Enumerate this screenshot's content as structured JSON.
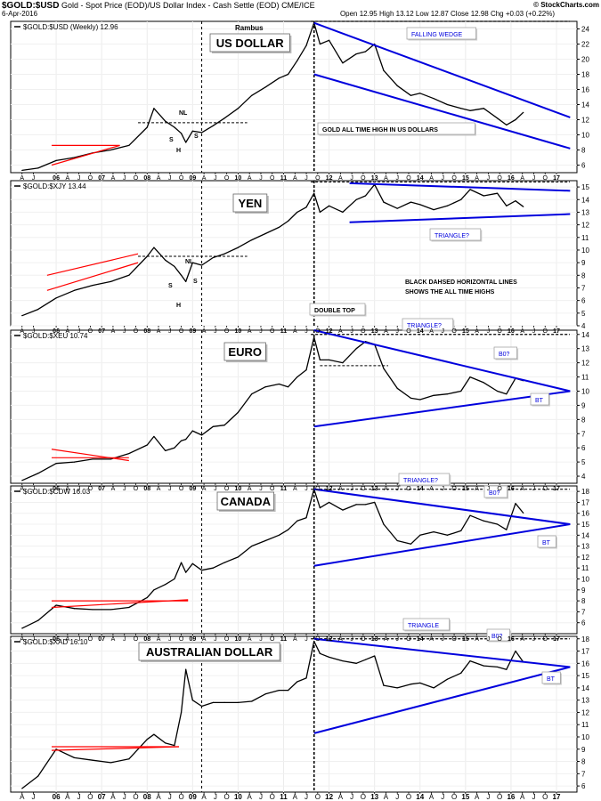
{
  "header": {
    "symbol": "$GOLD:$USD",
    "description": "Gold - Spot Price (EOD)/US Dollar Index - Cash Settle (EOD)",
    "exchange": "CME/ICE",
    "date": "6-Apr-2016",
    "ohlc": "Open 12.95   High 13.12   Low 12.87   Close 12.98   Chg +0.03 (+0.22%)",
    "brand": "© StockCharts.com"
  },
  "colors": {
    "price": "#000000",
    "trend": "#0000dd",
    "old_trend": "#ff0000",
    "dashed": "#000000"
  },
  "x_axis": {
    "labels": [
      "A",
      "J",
      "06",
      "A",
      "J",
      "O",
      "07",
      "A",
      "J",
      "O",
      "08",
      "A",
      "J",
      "O",
      "09",
      "A",
      "J",
      "O",
      "10",
      "A",
      "J",
      "O",
      "11",
      "A",
      "J",
      "O",
      "12",
      "A",
      "J",
      "O",
      "13",
      "A",
      "J",
      "O",
      "14",
      "A",
      "J",
      "O",
      "15",
      "A",
      "J",
      "O",
      "16",
      "A",
      "J",
      "O",
      "17"
    ]
  },
  "chart_data": [
    {
      "type": "line",
      "legend": "$GOLD:$USD (Weekly) 12.96",
      "label": "US DOLLAR",
      "extra_label": "Rambus",
      "ylim": [
        5,
        25
      ],
      "y_ticks": [
        6,
        8,
        10,
        12,
        14,
        16,
        18,
        20,
        22,
        24
      ],
      "all_time_high": 25,
      "neckline_level": 11.6,
      "annotations": [
        {
          "text": "FALLING WEDGE"
        },
        {
          "text": "GOLD ALL TIME HIGH IN US DOLLARS"
        },
        {
          "text": "NL"
        },
        {
          "text": "S"
        },
        {
          "text": "H"
        },
        {
          "text": "S"
        }
      ],
      "x_dates": [
        2005.25,
        2005.6,
        2006.0,
        2006.4,
        2006.8,
        2007.2,
        2007.6,
        2008.0,
        2008.15,
        2008.4,
        2008.6,
        2008.75,
        2008.85,
        2009.0,
        2009.2,
        2009.45,
        2009.7,
        2010.0,
        2010.3,
        2010.6,
        2010.9,
        2011.1,
        2011.3,
        2011.5,
        2011.67,
        2011.8,
        2012.0,
        2012.3,
        2012.6,
        2012.8,
        2013.0,
        2013.2,
        2013.5,
        2013.8,
        2014.0,
        2014.3,
        2014.6,
        2014.9,
        2015.1,
        2015.4,
        2015.7,
        2015.9,
        2016.1,
        2016.27
      ],
      "values": [
        5.3,
        5.6,
        6.6,
        7.0,
        7.6,
        8.0,
        8.6,
        11.0,
        13.5,
        11.8,
        11.0,
        10.2,
        9.0,
        10.5,
        10.3,
        11.2,
        12.2,
        13.5,
        15.2,
        16.3,
        17.5,
        18.0,
        19.8,
        21.8,
        24.8,
        22.0,
        22.5,
        19.5,
        20.7,
        21.0,
        22.0,
        18.5,
        16.5,
        15.2,
        15.5,
        14.8,
        14.0,
        13.5,
        13.2,
        13.5,
        12.2,
        11.3,
        12.0,
        12.96
      ],
      "trendlines": [
        {
          "name": "upper",
          "x": [
            2011.67,
            2017.3
          ],
          "y": [
            24.8,
            12.3
          ]
        },
        {
          "name": "lower",
          "x": [
            2011.67,
            2017.3
          ],
          "y": [
            18.0,
            8.2
          ]
        }
      ],
      "old_trendlines": [
        {
          "x": [
            2005.9,
            2007.4
          ],
          "y": [
            6.0,
            8.6
          ]
        },
        {
          "x": [
            2005.9,
            2007.4
          ],
          "y": [
            8.6,
            8.6
          ]
        }
      ]
    },
    {
      "type": "line",
      "legend": "$GOLD:$XJY 13.44",
      "label": "YEN",
      "ylim": [
        4,
        15.5
      ],
      "y_ticks": [
        4,
        5,
        6,
        7,
        8,
        9,
        10,
        11,
        12,
        13,
        14,
        15
      ],
      "all_time_high": 15.4,
      "neckline_level": 9.5,
      "annotations": [
        {
          "text": "TRIANGLE?"
        },
        {
          "text": "BLACK DAHSED HORIZONTAL LINES"
        },
        {
          "text": "SHOWS THE ALL TIME HIGHS"
        },
        {
          "text": "NL"
        },
        {
          "text": "S"
        },
        {
          "text": "H"
        },
        {
          "text": "S"
        }
      ],
      "x_dates": [
        2005.25,
        2005.6,
        2006.0,
        2006.4,
        2006.8,
        2007.2,
        2007.6,
        2008.0,
        2008.15,
        2008.4,
        2008.6,
        2008.75,
        2008.85,
        2009.0,
        2009.2,
        2009.45,
        2009.7,
        2010.0,
        2010.3,
        2010.6,
        2010.9,
        2011.1,
        2011.3,
        2011.5,
        2011.67,
        2011.8,
        2012.0,
        2012.3,
        2012.6,
        2012.8,
        2013.0,
        2013.2,
        2013.5,
        2013.8,
        2014.0,
        2014.3,
        2014.6,
        2014.9,
        2015.1,
        2015.4,
        2015.7,
        2015.9,
        2016.1,
        2016.27
      ],
      "values": [
        4.8,
        5.3,
        6.2,
        6.8,
        7.2,
        7.5,
        8.0,
        9.5,
        10.2,
        9.2,
        8.7,
        8.0,
        7.5,
        9.0,
        8.8,
        9.4,
        9.7,
        10.2,
        10.8,
        11.3,
        11.8,
        12.3,
        13.0,
        13.4,
        14.5,
        13.0,
        13.5,
        13.0,
        14.0,
        14.3,
        15.2,
        13.8,
        13.3,
        13.8,
        13.6,
        13.2,
        13.5,
        14.0,
        14.8,
        14.3,
        14.5,
        13.5,
        13.9,
        13.44
      ],
      "trendlines": [
        {
          "name": "upper",
          "x": [
            2012.45,
            2017.3
          ],
          "y": [
            15.3,
            14.7
          ]
        },
        {
          "name": "lower",
          "x": [
            2012.45,
            2017.3
          ],
          "y": [
            12.2,
            12.85
          ]
        }
      ],
      "old_trendlines": [
        {
          "x": [
            2005.8,
            2007.8
          ],
          "y": [
            6.8,
            9.0
          ]
        },
        {
          "x": [
            2005.8,
            2007.8
          ],
          "y": [
            8.0,
            9.7
          ]
        }
      ]
    },
    {
      "type": "line",
      "legend": "$GOLD:$XEU 10.74",
      "label": "EURO",
      "ylim": [
        3.5,
        14.3
      ],
      "y_ticks": [
        4,
        5,
        6,
        7,
        8,
        9,
        10,
        11,
        12,
        13,
        14
      ],
      "all_time_high": 14.0,
      "neckline_level": 11.8,
      "annotations": [
        {
          "text": "DOUBLE TOP"
        },
        {
          "text": "TRIANGLE?"
        },
        {
          "text": "B0?"
        },
        {
          "text": "BT"
        }
      ],
      "x_dates": [
        2005.25,
        2005.6,
        2006.0,
        2006.4,
        2006.8,
        2007.2,
        2007.6,
        2008.0,
        2008.15,
        2008.4,
        2008.6,
        2008.75,
        2008.85,
        2009.0,
        2009.2,
        2009.45,
        2009.7,
        2010.0,
        2010.3,
        2010.6,
        2010.9,
        2011.1,
        2011.3,
        2011.5,
        2011.67,
        2011.8,
        2012.0,
        2012.3,
        2012.6,
        2012.8,
        2013.0,
        2013.2,
        2013.5,
        2013.8,
        2014.0,
        2014.3,
        2014.6,
        2014.9,
        2015.1,
        2015.4,
        2015.7,
        2015.9,
        2016.1,
        2016.27
      ],
      "values": [
        3.7,
        4.2,
        4.9,
        5.0,
        5.2,
        5.2,
        5.6,
        6.2,
        6.8,
        5.8,
        6.0,
        6.5,
        6.6,
        7.2,
        6.9,
        7.5,
        7.6,
        8.5,
        9.8,
        10.3,
        10.5,
        10.3,
        11.0,
        11.5,
        13.8,
        12.2,
        12.2,
        12.0,
        13.0,
        13.5,
        13.3,
        11.6,
        10.2,
        9.5,
        9.4,
        9.7,
        9.8,
        10.0,
        11.0,
        10.6,
        10.0,
        9.8,
        10.9,
        10.74
      ],
      "trendlines": [
        {
          "name": "upper",
          "x": [
            2011.67,
            2017.3
          ],
          "y": [
            14.3,
            10.0
          ]
        },
        {
          "name": "lower",
          "x": [
            2011.67,
            2017.3
          ],
          "y": [
            7.5,
            10.0
          ]
        }
      ],
      "old_trendlines": [
        {
          "x": [
            2005.9,
            2007.6
          ],
          "y": [
            5.3,
            5.3
          ]
        },
        {
          "x": [
            2005.9,
            2007.6
          ],
          "y": [
            5.9,
            5.1
          ]
        }
      ]
    },
    {
      "type": "line",
      "legend": "$GOLD:$CDW 16.03",
      "label": "CANADA",
      "ylim": [
        5,
        18.5
      ],
      "y_ticks": [
        6,
        7,
        8,
        9,
        10,
        11,
        12,
        13,
        14,
        15,
        16,
        17,
        18
      ],
      "all_time_high": 18.2,
      "annotations": [
        {
          "text": "TRIANGLE?"
        },
        {
          "text": "B0?"
        },
        {
          "text": "BT"
        }
      ],
      "x_dates": [
        2005.25,
        2005.6,
        2006.0,
        2006.4,
        2006.8,
        2007.2,
        2007.6,
        2008.0,
        2008.15,
        2008.4,
        2008.6,
        2008.75,
        2008.85,
        2009.0,
        2009.2,
        2009.45,
        2009.7,
        2010.0,
        2010.3,
        2010.6,
        2010.9,
        2011.1,
        2011.3,
        2011.5,
        2011.67,
        2011.8,
        2012.0,
        2012.3,
        2012.6,
        2012.8,
        2013.0,
        2013.2,
        2013.5,
        2013.8,
        2014.0,
        2014.3,
        2014.6,
        2014.9,
        2015.1,
        2015.4,
        2015.7,
        2015.9,
        2016.1,
        2016.27
      ],
      "values": [
        5.5,
        6.2,
        7.6,
        7.3,
        7.2,
        7.2,
        7.4,
        8.3,
        9.0,
        9.5,
        10.0,
        11.5,
        10.6,
        11.4,
        10.8,
        11.0,
        11.5,
        12.0,
        13.0,
        13.5,
        14.0,
        14.5,
        15.3,
        15.6,
        18.2,
        16.5,
        17.0,
        16.3,
        16.8,
        16.8,
        17.0,
        15.0,
        13.5,
        13.2,
        14.0,
        14.3,
        14.0,
        14.4,
        15.8,
        15.3,
        15.0,
        14.5,
        16.9,
        16.03
      ],
      "trendlines": [
        {
          "name": "upper",
          "x": [
            2011.67,
            2017.3
          ],
          "y": [
            18.2,
            15.0
          ]
        },
        {
          "name": "lower",
          "x": [
            2011.67,
            2017.3
          ],
          "y": [
            11.2,
            15.0
          ]
        }
      ],
      "old_trendlines": [
        {
          "x": [
            2005.9,
            2008.9
          ],
          "y": [
            7.4,
            8.1
          ]
        },
        {
          "x": [
            2005.9,
            2008.9
          ],
          "y": [
            8.0,
            8.0
          ]
        }
      ]
    },
    {
      "type": "line",
      "legend": "$GOLD:$XAD 16.10",
      "label": "AUSTRALIAN DOLLAR",
      "ylim": [
        5.5,
        18.2
      ],
      "y_ticks": [
        6,
        7,
        8,
        9,
        10,
        11,
        12,
        13,
        14,
        15,
        16,
        17,
        18
      ],
      "all_time_high": 18.0,
      "annotations": [
        {
          "text": "TRIANGLE"
        },
        {
          "text": "B0?"
        },
        {
          "text": "BT"
        }
      ],
      "x_dates": [
        2005.25,
        2005.6,
        2006.0,
        2006.4,
        2006.8,
        2007.2,
        2007.6,
        2008.0,
        2008.15,
        2008.4,
        2008.6,
        2008.75,
        2008.85,
        2009.0,
        2009.2,
        2009.45,
        2009.7,
        2010.0,
        2010.3,
        2010.6,
        2010.9,
        2011.1,
        2011.3,
        2011.5,
        2011.67,
        2011.8,
        2012.0,
        2012.3,
        2012.6,
        2012.8,
        2013.0,
        2013.2,
        2013.5,
        2013.8,
        2014.0,
        2014.3,
        2014.6,
        2014.9,
        2015.1,
        2015.4,
        2015.7,
        2015.9,
        2016.1,
        2016.27
      ],
      "values": [
        5.8,
        6.8,
        9.0,
        8.3,
        8.1,
        7.9,
        8.2,
        9.8,
        10.2,
        9.5,
        9.3,
        12.0,
        15.5,
        13.0,
        12.5,
        12.8,
        12.8,
        12.8,
        12.9,
        13.5,
        13.8,
        13.8,
        14.5,
        14.8,
        17.8,
        16.8,
        16.5,
        16.2,
        16.0,
        16.3,
        16.6,
        14.2,
        14.0,
        14.3,
        14.4,
        14.0,
        14.7,
        15.2,
        16.2,
        15.8,
        15.7,
        15.5,
        17.0,
        16.1
      ],
      "trendlines": [
        {
          "name": "upper",
          "x": [
            2011.67,
            2017.3
          ],
          "y": [
            18.0,
            15.7
          ]
        },
        {
          "name": "lower",
          "x": [
            2011.67,
            2017.3
          ],
          "y": [
            10.3,
            15.7
          ]
        }
      ],
      "old_trendlines": [
        {
          "x": [
            2005.9,
            2008.7
          ],
          "y": [
            9.2,
            9.2
          ]
        },
        {
          "x": [
            2005.9,
            2008.7
          ],
          "y": [
            8.9,
            9.2
          ]
        }
      ]
    }
  ]
}
